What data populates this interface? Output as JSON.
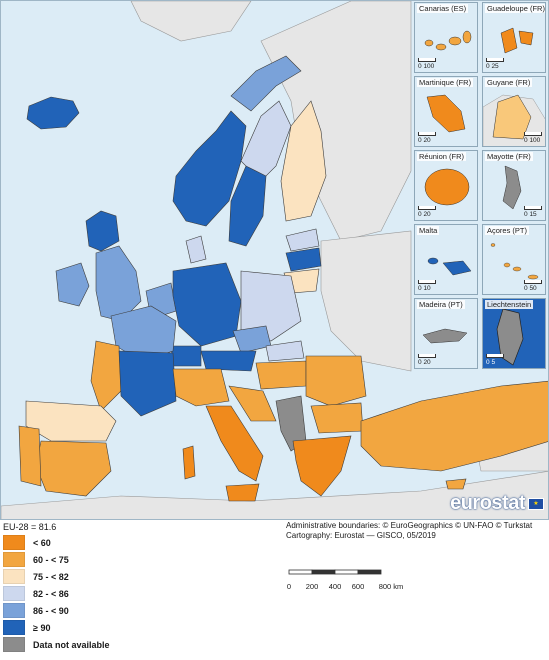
{
  "insets": [
    {
      "id": "canarias",
      "title": "Canarias (ES)",
      "scale": [
        "0",
        "100"
      ],
      "fill": "#f2a640",
      "land": "#f2a640"
    },
    {
      "id": "guadeloupe",
      "title": "Guadeloupe (FR)",
      "scale": [
        "0",
        "25"
      ],
      "fill": "#f08a1c"
    },
    {
      "id": "martinique",
      "title": "Martinique (FR)",
      "scale": [
        "0",
        "20"
      ],
      "fill": "#f08a1c"
    },
    {
      "id": "guyane",
      "title": "Guyane (FR)",
      "scale": [
        "0",
        "100"
      ],
      "fill": "#f9c87a"
    },
    {
      "id": "reunion",
      "title": "Réunion (FR)",
      "scale": [
        "0",
        "20"
      ],
      "fill": "#f08a1c"
    },
    {
      "id": "mayotte",
      "title": "Mayotte (FR)",
      "scale": [
        "0",
        "15"
      ],
      "fill": "#8c8c8c"
    },
    {
      "id": "malta",
      "title": "Malta",
      "scale": [
        "0",
        "10"
      ],
      "fill": "#2163b8"
    },
    {
      "id": "acores",
      "title": "Açores (PT)",
      "scale": [
        "0",
        "50"
      ],
      "fill": "#f2a640"
    },
    {
      "id": "madeira",
      "title": "Madeira (PT)",
      "scale": [
        "0",
        "20"
      ],
      "fill": "#8c8c8c"
    },
    {
      "id": "liechtenstein",
      "title": "Liechtenstein",
      "scale": [
        "0",
        "5"
      ],
      "fill": "#8c8c8c"
    }
  ],
  "logo": {
    "text": "eurostat"
  },
  "average": "EU-28 = 81.6",
  "legend": [
    {
      "label": "< 60",
      "color": "#f08a1c"
    },
    {
      "label": "60 - < 75",
      "color": "#f2a640"
    },
    {
      "label": "75 - < 82",
      "color": "#fbe3c0"
    },
    {
      "label": "82 - < 86",
      "color": "#cdd8ee"
    },
    {
      "label": "86 - < 90",
      "color": "#7aa2d9"
    },
    {
      "label": "≥ 90",
      "color": "#2163b8"
    },
    {
      "label": "Data not available",
      "color": "#8c8c8c"
    }
  ],
  "credits": {
    "line1": "Administrative boundaries: © EuroGeographics © UN-FAO © Turkstat",
    "line2": "Cartography: Eurostat — GISCO, 05/2019"
  },
  "scalebar": {
    "ticks": [
      "0",
      "200",
      "400",
      "600",
      "800 km"
    ]
  },
  "colors": {
    "sea": "#dcecf6",
    "non_eu_land": "#e6e6e6",
    "border": "#3c3c3c"
  }
}
